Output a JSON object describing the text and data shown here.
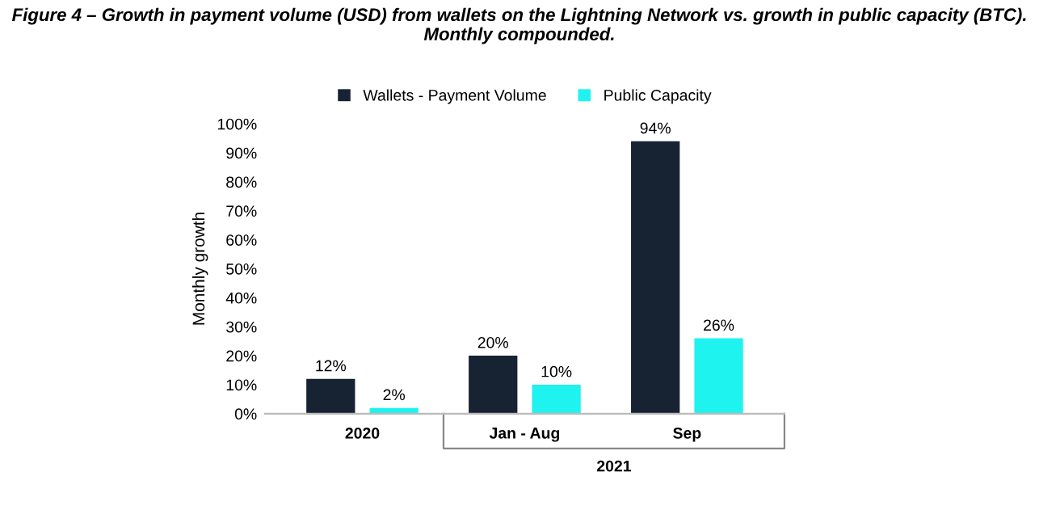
{
  "chart_data": {
    "type": "bar",
    "title": "Figure 4 – Growth in payment volume (USD) from wallets on the Lightning Network vs. growth in public capacity (BTC).\nMonthly compounded.",
    "ylabel": "Monthly growth",
    "categories": [
      "2020",
      "Jan - Aug",
      "Sep"
    ],
    "series": [
      {
        "name": "Wallets - Payment Volume",
        "color": "#172233",
        "values": [
          12,
          20,
          94
        ],
        "value_labels": [
          "12%",
          "20%",
          "94%"
        ]
      },
      {
        "name": "Public Capacity",
        "color": "#1ff3ef",
        "values": [
          2,
          10,
          26
        ],
        "value_labels": [
          "2%",
          "10%",
          "26%"
        ]
      }
    ],
    "ylim": [
      0,
      100
    ],
    "yticks": [
      {
        "value": 0,
        "label": "0%"
      },
      {
        "value": 10,
        "label": "10%"
      },
      {
        "value": 20,
        "label": "20%"
      },
      {
        "value": 30,
        "label": "30%"
      },
      {
        "value": 40,
        "label": "40%"
      },
      {
        "value": 50,
        "label": "50%"
      },
      {
        "value": 60,
        "label": "60%"
      },
      {
        "value": 70,
        "label": "70%"
      },
      {
        "value": 80,
        "label": "80%"
      },
      {
        "value": 90,
        "label": "90%"
      },
      {
        "value": 100,
        "label": "100%"
      }
    ],
    "annotations": [
      "2021"
    ],
    "legend": "top",
    "grid": false
  }
}
